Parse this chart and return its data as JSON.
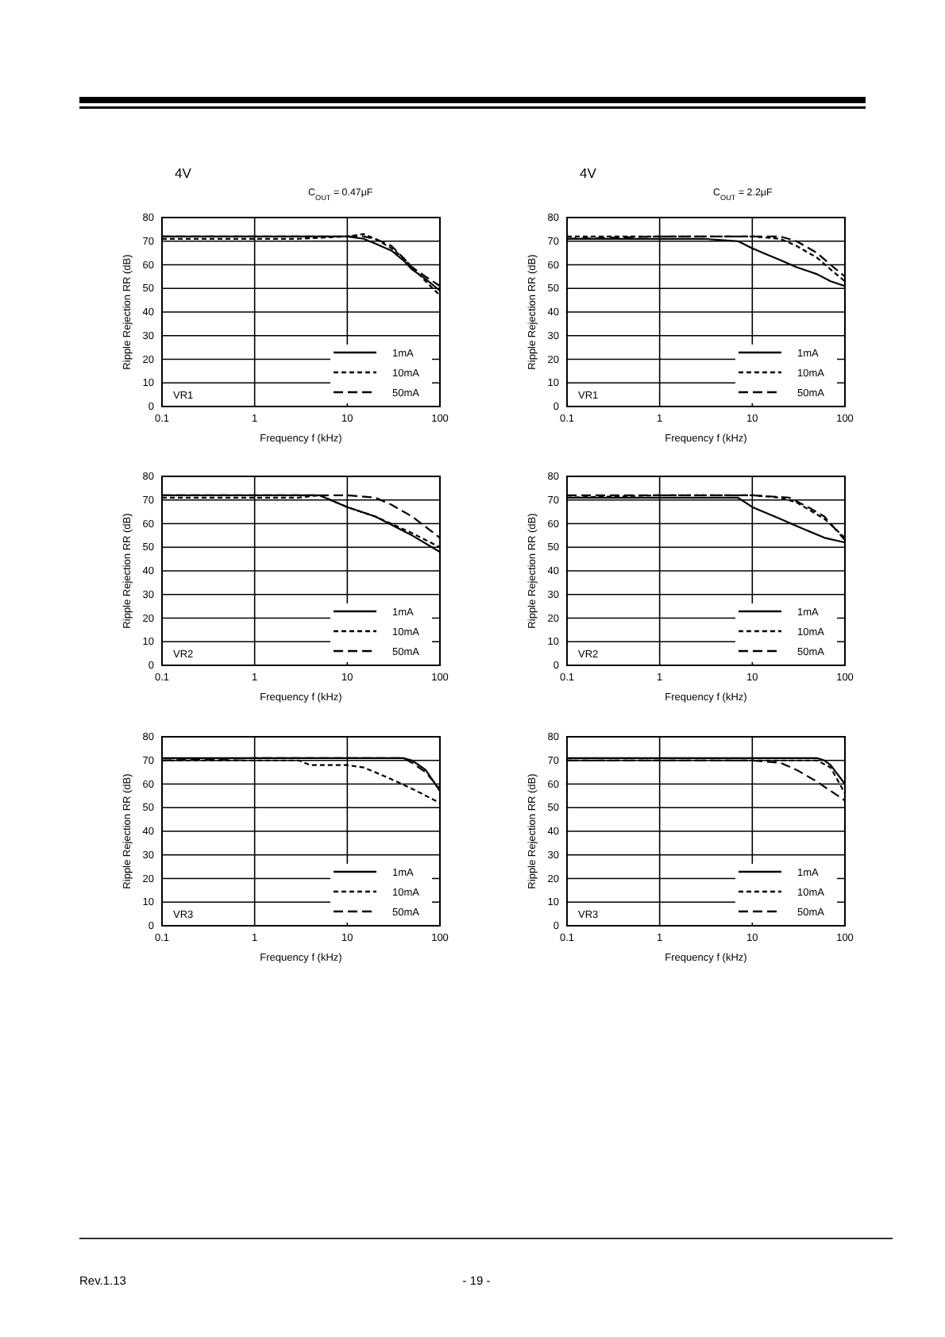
{
  "chart_data": [
    {
      "type": "line",
      "title": "4V",
      "subtitle": "C$_{OUT}$ = 0.47μF",
      "xlabel": "Frequency f (kHz)",
      "ylabel": "Ripple Rejection RR (dB)",
      "annotations": [
        "VR1"
      ],
      "log": "x",
      "xlim": [
        0.1,
        100
      ],
      "xticks": [
        0.1,
        1,
        10,
        100
      ],
      "ylim": [
        0,
        80
      ],
      "yticks": [
        0,
        10,
        20,
        30,
        40,
        50,
        60,
        70,
        80
      ],
      "grid": true,
      "legend": "bottom right",
      "series": [
        {
          "name": "1mA",
          "color": "#000000",
          "line_style": "solid",
          "x": [
            0.1,
            0.3,
            1,
            3,
            10,
            15,
            20,
            30,
            40,
            50,
            70,
            100
          ],
          "values": [
            72,
            72,
            72,
            72,
            72,
            71,
            69,
            66,
            62,
            58,
            54,
            49
          ]
        },
        {
          "name": "10mA",
          "color": "#000000",
          "line_style": "dashed",
          "x": [
            0.1,
            0.3,
            1,
            3,
            10,
            15,
            20,
            30,
            40,
            50,
            70,
            100
          ],
          "values": [
            71,
            71,
            71,
            71,
            72,
            73,
            71,
            67,
            63,
            59,
            53,
            47
          ]
        },
        {
          "name": "50mA",
          "color": "#000000",
          "line_style": "dashed",
          "x": [
            0.1,
            0.3,
            1,
            3,
            10,
            15,
            20,
            30,
            40,
            50,
            70,
            100
          ],
          "values": [
            72,
            72,
            72,
            72,
            72,
            72,
            71,
            68,
            63,
            59,
            55,
            51
          ]
        }
      ]
    },
    {
      "type": "line",
      "title": "4V",
      "subtitle": "C$_{OUT}$ = 2.2μF",
      "xlabel": "Frequency f (kHz)",
      "ylabel": "Ripple Rejection RR (dB)",
      "annotations": [
        "VR1"
      ],
      "log": "x",
      "xlim": [
        0.1,
        100
      ],
      "xticks": [
        0.1,
        1,
        10,
        100
      ],
      "ylim": [
        0,
        80
      ],
      "yticks": [
        0,
        10,
        20,
        30,
        40,
        50,
        60,
        70,
        80
      ],
      "grid": true,
      "legend": "bottom right",
      "series": [
        {
          "name": "1mA",
          "color": "#000000",
          "line_style": "solid",
          "x": [
            0.1,
            0.3,
            1,
            3,
            7,
            10,
            15,
            20,
            30,
            50,
            70,
            100
          ],
          "values": [
            71,
            71,
            71,
            71,
            70,
            67,
            64,
            62,
            59,
            56,
            53,
            51
          ]
        },
        {
          "name": "10mA",
          "color": "#000000",
          "line_style": "dashed",
          "x": [
            0.1,
            1,
            10,
            20,
            30,
            50,
            70,
            100
          ],
          "values": [
            72,
            72,
            72,
            71,
            68,
            63,
            58,
            53
          ]
        },
        {
          "name": "50mA",
          "color": "#000000",
          "line_style": "dashed",
          "x": [
            0.1,
            1,
            10,
            20,
            30,
            50,
            70,
            100
          ],
          "values": [
            71,
            72,
            72,
            72,
            70,
            65,
            60,
            55
          ]
        }
      ]
    },
    {
      "type": "line",
      "xlabel": "Frequency f (kHz)",
      "ylabel": "Ripple Rejection RR (dB)",
      "annotations": [
        "VR2"
      ],
      "log": "x",
      "xlim": [
        0.1,
        100
      ],
      "xticks": [
        0.1,
        1,
        10,
        100
      ],
      "ylim": [
        0,
        80
      ],
      "yticks": [
        0,
        10,
        20,
        30,
        40,
        50,
        60,
        70,
        80
      ],
      "grid": true,
      "legend": "bottom right",
      "series": [
        {
          "name": "1mA",
          "color": "#000000",
          "line_style": "solid",
          "x": [
            0.1,
            1,
            3,
            5,
            10,
            20,
            50,
            100
          ],
          "values": [
            72,
            72,
            72,
            72,
            67,
            63,
            55,
            48
          ]
        },
        {
          "name": "10mA",
          "color": "#000000",
          "line_style": "dashed",
          "x": [
            0.1,
            1,
            3,
            5,
            10,
            20,
            50,
            100
          ],
          "values": [
            71,
            71,
            71,
            72,
            67,
            63,
            56,
            50
          ]
        },
        {
          "name": "50mA",
          "color": "#000000",
          "line_style": "dashed",
          "x": [
            0.1,
            1,
            10,
            20,
            30,
            50,
            100
          ],
          "values": [
            72,
            72,
            72,
            71,
            68,
            63,
            54
          ]
        }
      ]
    },
    {
      "type": "line",
      "xlabel": "Frequency f (kHz)",
      "ylabel": "Ripple Rejection RR (dB)",
      "annotations": [
        "VR2"
      ],
      "log": "x",
      "xlim": [
        0.1,
        100
      ],
      "xticks": [
        0.1,
        1,
        10,
        100
      ],
      "ylim": [
        0,
        80
      ],
      "yticks": [
        0,
        10,
        20,
        30,
        40,
        50,
        60,
        70,
        80
      ],
      "grid": true,
      "legend": "bottom right",
      "series": [
        {
          "name": "1mA",
          "color": "#000000",
          "line_style": "solid",
          "x": [
            0.1,
            1,
            3,
            7,
            10,
            20,
            30,
            60,
            100
          ],
          "values": [
            71,
            71,
            71,
            71,
            67,
            62,
            59,
            54,
            52
          ]
        },
        {
          "name": "10mA",
          "color": "#000000",
          "line_style": "dashed",
          "x": [
            0.1,
            1,
            10,
            20,
            30,
            60,
            100
          ],
          "values": [
            71,
            72,
            72,
            71,
            69,
            62,
            54
          ]
        },
        {
          "name": "50mA",
          "color": "#000000",
          "line_style": "dashed",
          "x": [
            0.1,
            1,
            10,
            25,
            40,
            60,
            100
          ],
          "values": [
            72,
            72,
            72,
            71,
            67,
            63,
            53
          ]
        }
      ]
    },
    {
      "type": "line",
      "xlabel": "Frequency f (kHz)",
      "ylabel": "Ripple Rejection RR (dB)",
      "annotations": [
        "VR3",
        "Rev.1.13",
        "- 19 -"
      ],
      "log": "x",
      "xlim": [
        0.1,
        100
      ],
      "xticks": [
        0.1,
        1,
        10,
        100
      ],
      "ylim": [
        0,
        80
      ],
      "yticks": [
        0,
        10,
        20,
        30,
        40,
        50,
        60,
        70,
        80
      ],
      "grid": true,
      "legend": "bottom right",
      "series": [
        {
          "name": "1mA",
          "color": "#000000",
          "line_style": "solid",
          "x": [
            0.1,
            1,
            10,
            40,
            50,
            70,
            100
          ],
          "values": [
            71,
            71,
            71,
            71,
            70,
            66,
            57
          ]
        },
        {
          "name": "10mA",
          "color": "#000000",
          "line_style": "dashed",
          "x": [
            0.1,
            1,
            3,
            4,
            10,
            15,
            20,
            30,
            50,
            100
          ],
          "values": [
            70,
            70,
            70,
            68,
            68,
            67,
            65,
            62,
            58,
            52
          ]
        },
        {
          "name": "50mA",
          "color": "#000000",
          "line_style": "dashed",
          "x": [
            0.1,
            1,
            10,
            40,
            50,
            70,
            100
          ],
          "values": [
            70,
            71,
            71,
            71,
            69,
            65,
            58
          ]
        }
      ]
    },
    {
      "type": "line",
      "xlabel": "Frequency f (kHz)",
      "ylabel": "Ripple Rejection RR (dB)",
      "annotations": [
        "VR3"
      ],
      "log": "x",
      "xlim": [
        0.1,
        100
      ],
      "xticks": [
        0.1,
        1,
        10,
        100
      ],
      "ylim": [
        0,
        80
      ],
      "yticks": [
        0,
        10,
        20,
        30,
        40,
        50,
        60,
        70,
        80
      ],
      "grid": true,
      "legend": "bottom right",
      "series": [
        {
          "name": "1mA",
          "color": "#000000",
          "line_style": "solid",
          "x": [
            0.1,
            1,
            10,
            50,
            60,
            70,
            100
          ],
          "values": [
            71,
            71,
            71,
            71,
            70,
            68,
            60
          ]
        },
        {
          "name": "10mA",
          "color": "#000000",
          "line_style": "dashed",
          "x": [
            0.1,
            1,
            10,
            50,
            70,
            100
          ],
          "values": [
            70,
            70,
            70,
            70,
            67,
            56
          ]
        },
        {
          "name": "50mA",
          "color": "#000000",
          "line_style": "dashed",
          "x": [
            0.1,
            1,
            10,
            20,
            30,
            50,
            100
          ],
          "values": [
            70,
            70,
            70,
            69,
            66,
            61,
            53
          ]
        }
      ]
    }
  ]
}
